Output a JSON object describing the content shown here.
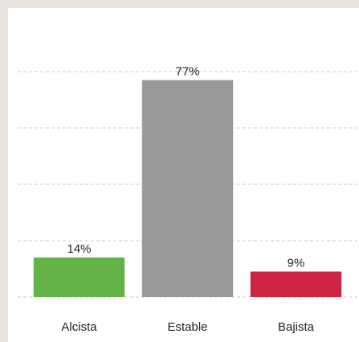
{
  "chart_data": {
    "type": "bar",
    "categories": [
      "Alcista",
      "Estable",
      "Bajista"
    ],
    "values": [
      14,
      77,
      9
    ],
    "value_labels": [
      "14%",
      "77%",
      "9%"
    ],
    "colors": [
      "#63b347",
      "#999999",
      "#cc2340"
    ],
    "ylim": [
      0,
      80
    ],
    "yticks": [
      0,
      20,
      40,
      60,
      80
    ],
    "grid": true
  }
}
